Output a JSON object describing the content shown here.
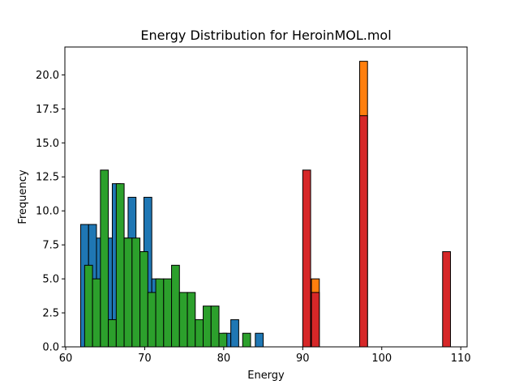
{
  "chart_data": {
    "type": "bar",
    "title": "Energy Distribution for HeroinMOL.mol",
    "xlabel": "Energy",
    "ylabel": "Frequency",
    "xlim": [
      59.9,
      110.8
    ],
    "ylim": [
      0,
      22.05
    ],
    "xticks": [
      60,
      70,
      80,
      90,
      100,
      110
    ],
    "yticks": [
      0.0,
      2.5,
      5.0,
      7.5,
      10.0,
      12.5,
      15.0,
      17.5,
      20.0
    ],
    "ytick_labels": [
      "0.0",
      "2.5",
      "5.0",
      "7.5",
      "10.0",
      "12.5",
      "15.0",
      "17.5",
      "20.0"
    ],
    "bin_width": 1.0,
    "grid": false,
    "series": [
      {
        "color": "#1f77b4",
        "bins": [
          {
            "x": 61.9,
            "y": 9
          },
          {
            "x": 62.9,
            "y": 9
          },
          {
            "x": 63.9,
            "y": 8
          },
          {
            "x": 64.9,
            "y": 8
          },
          {
            "x": 65.9,
            "y": 12
          },
          {
            "x": 66.9,
            "y": 8
          },
          {
            "x": 67.9,
            "y": 11
          },
          {
            "x": 68.9,
            "y": 7
          },
          {
            "x": 69.9,
            "y": 11
          },
          {
            "x": 70.9,
            "y": 5
          },
          {
            "x": 71.9,
            "y": 4
          },
          {
            "x": 72.9,
            "y": 3
          },
          {
            "x": 73.9,
            "y": 2
          },
          {
            "x": 74.9,
            "y": 2
          },
          {
            "x": 75.9,
            "y": 2
          },
          {
            "x": 79.9,
            "y": 1
          },
          {
            "x": 80.9,
            "y": 2
          },
          {
            "x": 84.0,
            "y": 1
          }
        ]
      },
      {
        "color": "#ff7f0e",
        "bins": [
          {
            "x": 91.1,
            "y": 5
          },
          {
            "x": 97.2,
            "y": 21
          }
        ]
      },
      {
        "color": "#2ca02c",
        "bins": [
          {
            "x": 62.4,
            "y": 6
          },
          {
            "x": 63.4,
            "y": 5
          },
          {
            "x": 64.4,
            "y": 13
          },
          {
            "x": 65.4,
            "y": 2
          },
          {
            "x": 66.4,
            "y": 12
          },
          {
            "x": 67.4,
            "y": 8
          },
          {
            "x": 68.4,
            "y": 8
          },
          {
            "x": 69.4,
            "y": 7
          },
          {
            "x": 70.4,
            "y": 4
          },
          {
            "x": 71.4,
            "y": 5
          },
          {
            "x": 72.4,
            "y": 5
          },
          {
            "x": 73.4,
            "y": 6
          },
          {
            "x": 74.4,
            "y": 4
          },
          {
            "x": 75.4,
            "y": 4
          },
          {
            "x": 76.4,
            "y": 2
          },
          {
            "x": 77.4,
            "y": 3
          },
          {
            "x": 78.4,
            "y": 3
          },
          {
            "x": 79.4,
            "y": 1
          },
          {
            "x": 82.4,
            "y": 1
          }
        ]
      },
      {
        "color": "#d62728",
        "bins": [
          {
            "x": 90.0,
            "y": 13
          },
          {
            "x": 91.1,
            "y": 4
          },
          {
            "x": 97.2,
            "y": 17
          },
          {
            "x": 107.7,
            "y": 7
          }
        ]
      }
    ]
  }
}
